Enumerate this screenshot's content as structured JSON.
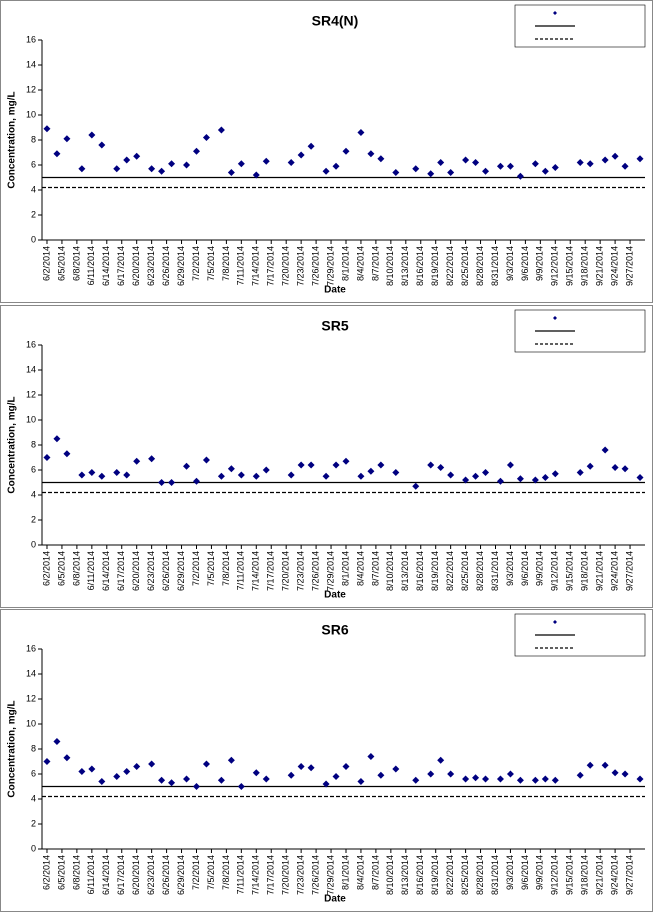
{
  "chart_data": [
    {
      "type": "scatter",
      "title": "SR4(N)",
      "xlabel": "Date",
      "ylabel": "Concentration, mg/L",
      "color": "#000080",
      "x": [
        "6/2/2014",
        "6/4/2014",
        "6/6/2014",
        "6/9/2014",
        "6/11/2014",
        "6/13/2014",
        "6/16/2014",
        "6/18/2014",
        "6/20/2014",
        "6/23/2014",
        "6/25/2014",
        "6/27/2014",
        "6/30/2014",
        "7/2/2014",
        "7/4/2014",
        "7/7/2014",
        "7/9/2014",
        "7/11/2014",
        "7/14/2014",
        "7/16/2014",
        "7/21/2014",
        "7/23/2014",
        "7/25/2014",
        "7/28/2014",
        "7/30/2014",
        "8/1/2014",
        "8/4/2014",
        "8/6/2014",
        "8/8/2014",
        "8/11/2014",
        "8/15/2014",
        "8/18/2014",
        "8/20/2014",
        "8/22/2014",
        "8/25/2014",
        "8/27/2014",
        "8/29/2014",
        "9/1/2014",
        "9/3/2014",
        "9/5/2014",
        "9/8/2014",
        "9/10/2014",
        "9/12/2014",
        "9/17/2014",
        "9/19/2014",
        "9/22/2014",
        "9/24/2014",
        "9/26/2014",
        "9/29/2014"
      ],
      "values": [
        8.9,
        6.9,
        8.1,
        5.7,
        8.4,
        7.6,
        5.7,
        6.4,
        6.7,
        5.7,
        5.5,
        6.1,
        6.0,
        7.1,
        8.2,
        8.8,
        5.4,
        6.1,
        5.2,
        6.3,
        6.2,
        6.8,
        7.5,
        5.5,
        5.9,
        7.1,
        8.6,
        6.9,
        6.5,
        5.4,
        5.7,
        5.3,
        6.2,
        5.4,
        6.4,
        6.2,
        5.5,
        5.9,
        5.9,
        5.1,
        6.1,
        5.5,
        5.8,
        6.2,
        6.1,
        6.4,
        6.7,
        5.9,
        6.5
      ],
      "reference_lines": [
        {
          "value": 5,
          "style": "solid"
        },
        {
          "value": 4.2,
          "style": "dashed"
        }
      ],
      "xlim": [
        "6/1/2014",
        "9/30/2014"
      ],
      "xticks": [
        "6/2/2014",
        "6/5/2014",
        "6/8/2014",
        "6/11/2014",
        "6/14/2014",
        "6/17/2014",
        "6/20/2014",
        "6/23/2014",
        "6/26/2014",
        "6/29/2014",
        "7/2/2014",
        "7/5/2014",
        "7/8/2014",
        "7/11/2014",
        "7/14/2014",
        "7/17/2014",
        "7/20/2014",
        "7/23/2014",
        "7/26/2014",
        "7/29/2014",
        "8/1/2014",
        "8/4/2014",
        "8/7/2014",
        "8/10/2014",
        "8/13/2014",
        "8/16/2014",
        "8/19/2014",
        "8/22/2014",
        "8/25/2014",
        "8/28/2014",
        "8/31/2014",
        "9/3/2014",
        "9/6/2014",
        "9/9/2014",
        "9/12/2014",
        "9/15/2014",
        "9/18/2014",
        "9/21/2014",
        "9/24/2014",
        "9/27/2014"
      ],
      "ylim": [
        0,
        16
      ],
      "yticks": [
        0,
        2,
        4,
        6,
        8,
        10,
        12,
        14,
        16
      ]
    },
    {
      "type": "scatter",
      "title": "SR5",
      "xlabel": "Date",
      "ylabel": "Concentration, mg/L",
      "color": "#000080",
      "x": [
        "6/2/2014",
        "6/4/2014",
        "6/6/2014",
        "6/9/2014",
        "6/11/2014",
        "6/13/2014",
        "6/16/2014",
        "6/18/2014",
        "6/20/2014",
        "6/23/2014",
        "6/25/2014",
        "6/27/2014",
        "6/30/2014",
        "7/2/2014",
        "7/4/2014",
        "7/7/2014",
        "7/9/2014",
        "7/11/2014",
        "7/14/2014",
        "7/16/2014",
        "7/21/2014",
        "7/23/2014",
        "7/25/2014",
        "7/28/2014",
        "7/30/2014",
        "8/1/2014",
        "8/4/2014",
        "8/6/2014",
        "8/8/2014",
        "8/11/2014",
        "8/15/2014",
        "8/18/2014",
        "8/20/2014",
        "8/22/2014",
        "8/25/2014",
        "8/27/2014",
        "8/29/2014",
        "9/1/2014",
        "9/3/2014",
        "9/5/2014",
        "9/8/2014",
        "9/10/2014",
        "9/12/2014",
        "9/17/2014",
        "9/19/2014",
        "9/22/2014",
        "9/24/2014",
        "9/26/2014",
        "9/29/2014"
      ],
      "values": [
        7.0,
        8.5,
        7.3,
        5.6,
        5.8,
        5.5,
        5.8,
        5.6,
        6.7,
        6.9,
        5.0,
        5.0,
        6.3,
        5.1,
        6.8,
        5.5,
        6.1,
        5.6,
        5.5,
        6.0,
        5.6,
        6.4,
        6.4,
        5.5,
        6.4,
        6.7,
        5.5,
        5.9,
        6.4,
        5.8,
        4.7,
        6.4,
        6.2,
        5.6,
        5.2,
        5.5,
        5.8,
        5.1,
        6.4,
        5.3,
        5.2,
        5.4,
        5.7,
        5.8,
        6.3,
        7.6,
        6.2,
        6.1,
        5.4
      ],
      "reference_lines": [
        {
          "value": 5,
          "style": "solid"
        },
        {
          "value": 4.2,
          "style": "dashed"
        }
      ],
      "xlim": [
        "6/1/2014",
        "9/30/2014"
      ],
      "xticks": [
        "6/2/2014",
        "6/5/2014",
        "6/8/2014",
        "6/11/2014",
        "6/14/2014",
        "6/17/2014",
        "6/20/2014",
        "6/23/2014",
        "6/26/2014",
        "6/29/2014",
        "7/2/2014",
        "7/5/2014",
        "7/8/2014",
        "7/11/2014",
        "7/14/2014",
        "7/17/2014",
        "7/20/2014",
        "7/23/2014",
        "7/26/2014",
        "7/29/2014",
        "8/1/2014",
        "8/4/2014",
        "8/7/2014",
        "8/10/2014",
        "8/13/2014",
        "8/16/2014",
        "8/19/2014",
        "8/22/2014",
        "8/25/2014",
        "8/28/2014",
        "8/31/2014",
        "9/3/2014",
        "9/6/2014",
        "9/9/2014",
        "9/12/2014",
        "9/15/2014",
        "9/18/2014",
        "9/21/2014",
        "9/24/2014",
        "9/27/2014"
      ],
      "ylim": [
        0,
        16
      ],
      "yticks": [
        0,
        2,
        4,
        6,
        8,
        10,
        12,
        14,
        16
      ]
    },
    {
      "type": "scatter",
      "title": "SR6",
      "xlabel": "Date",
      "ylabel": "Concentration, mg/L",
      "color": "#000080",
      "x": [
        "6/2/2014",
        "6/4/2014",
        "6/6/2014",
        "6/9/2014",
        "6/11/2014",
        "6/13/2014",
        "6/16/2014",
        "6/18/2014",
        "6/20/2014",
        "6/23/2014",
        "6/25/2014",
        "6/27/2014",
        "6/30/2014",
        "7/2/2014",
        "7/4/2014",
        "7/7/2014",
        "7/9/2014",
        "7/11/2014",
        "7/14/2014",
        "7/16/2014",
        "7/21/2014",
        "7/23/2014",
        "7/25/2014",
        "7/28/2014",
        "7/30/2014",
        "8/1/2014",
        "8/4/2014",
        "8/6/2014",
        "8/8/2014",
        "8/11/2014",
        "8/15/2014",
        "8/18/2014",
        "8/20/2014",
        "8/22/2014",
        "8/25/2014",
        "8/27/2014",
        "8/29/2014",
        "9/1/2014",
        "9/3/2014",
        "9/5/2014",
        "9/8/2014",
        "9/10/2014",
        "9/12/2014",
        "9/17/2014",
        "9/19/2014",
        "9/22/2014",
        "9/24/2014",
        "9/26/2014",
        "9/29/2014"
      ],
      "values": [
        7.0,
        8.6,
        7.3,
        6.2,
        6.4,
        5.4,
        5.8,
        6.2,
        6.6,
        6.8,
        5.5,
        5.3,
        5.6,
        5.0,
        6.8,
        5.5,
        7.1,
        5.0,
        6.1,
        5.6,
        5.9,
        6.6,
        6.5,
        5.2,
        5.8,
        6.6,
        5.4,
        7.4,
        5.9,
        6.4,
        5.5,
        6.0,
        7.1,
        6.0,
        5.6,
        5.7,
        5.6,
        5.6,
        6.0,
        5.5,
        5.5,
        5.6,
        5.5,
        5.9,
        6.7,
        6.7,
        6.1,
        6.0,
        5.6
      ],
      "reference_lines": [
        {
          "value": 5,
          "style": "solid"
        },
        {
          "value": 4.2,
          "style": "dashed"
        }
      ],
      "xlim": [
        "6/1/2014",
        "9/30/2014"
      ],
      "xticks": [
        "6/2/2014",
        "6/5/2014",
        "6/8/2014",
        "6/11/2014",
        "6/14/2014",
        "6/17/2014",
        "6/20/2014",
        "6/23/2014",
        "6/26/2014",
        "6/29/2014",
        "7/2/2014",
        "7/5/2014",
        "7/8/2014",
        "7/11/2014",
        "7/14/2014",
        "7/17/2014",
        "7/20/2014",
        "7/23/2014",
        "7/26/2014",
        "7/29/2014",
        "8/1/2014",
        "8/4/2014",
        "8/7/2014",
        "8/10/2014",
        "8/13/2014",
        "8/16/2014",
        "8/19/2014",
        "8/22/2014",
        "8/25/2014",
        "8/28/2014",
        "8/31/2014",
        "9/3/2014",
        "9/6/2014",
        "9/9/2014",
        "9/12/2014",
        "9/15/2014",
        "9/18/2014",
        "9/21/2014",
        "9/24/2014",
        "9/27/2014"
      ],
      "ylim": [
        0,
        16
      ],
      "yticks": [
        0,
        2,
        4,
        6,
        8,
        10,
        12,
        14,
        16
      ]
    }
  ]
}
